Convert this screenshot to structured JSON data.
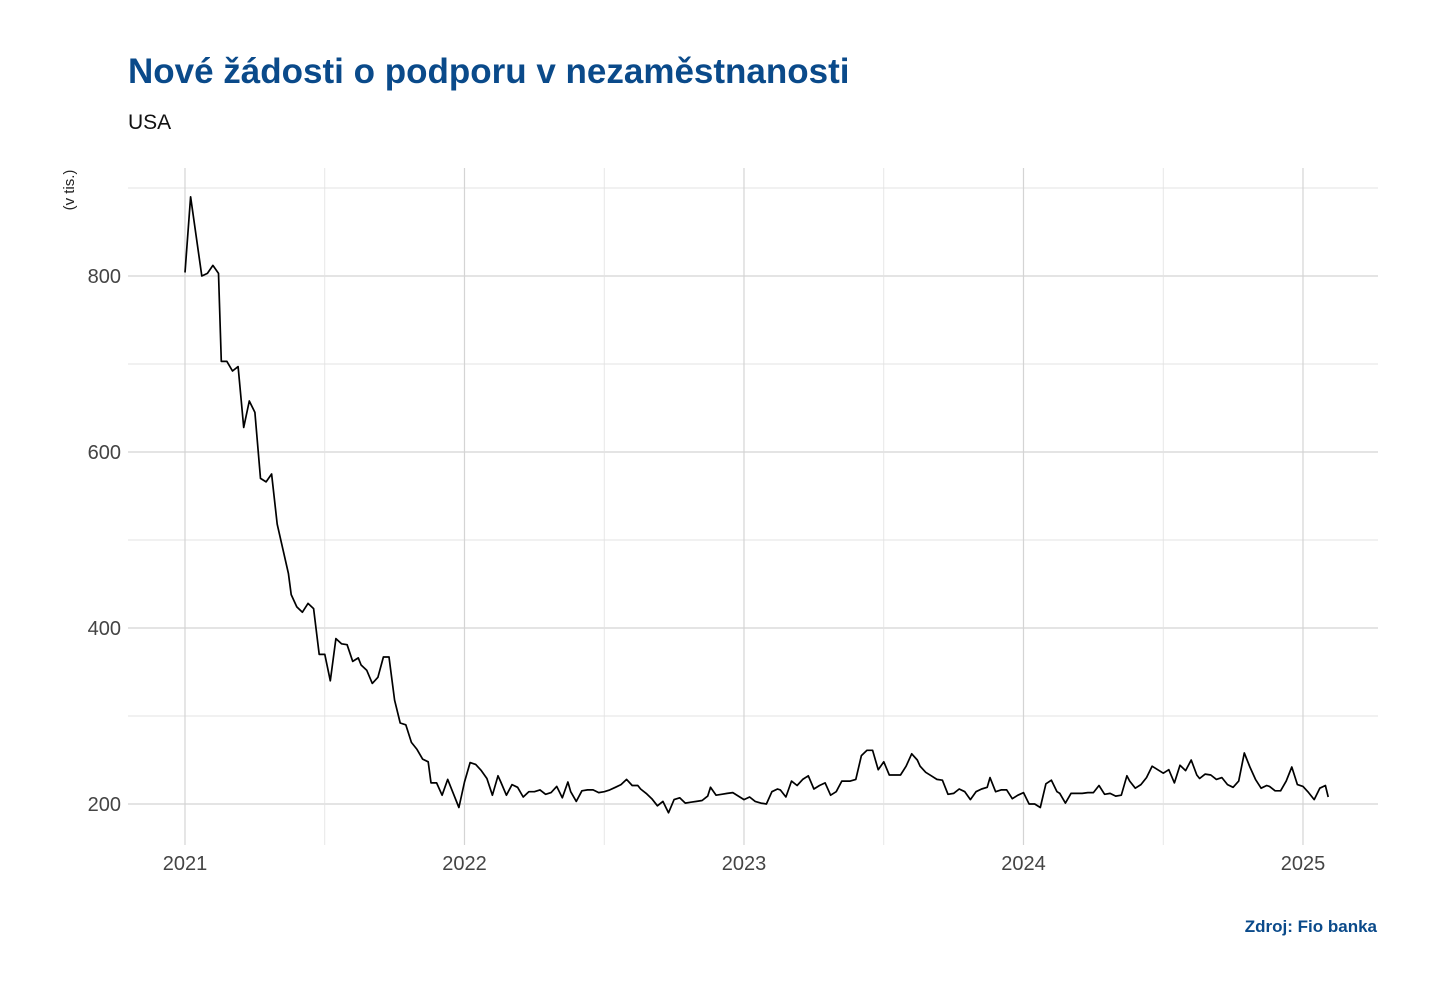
{
  "title": "Nové žádosti o podporu v nezaměstnanosti",
  "subtitle": "USA",
  "source": "Zdroj: Fio banka",
  "chart_data": {
    "type": "line",
    "title": "Nové žádosti o podporu v nezaměstnanosti",
    "subtitle": "USA",
    "ylabel": "(v tis.)",
    "xlabel": "",
    "x_ticks": [
      "2021",
      "2022",
      "2023",
      "2024",
      "2025"
    ],
    "y_ticks": [
      200,
      400,
      600,
      800
    ],
    "ylim": [
      155,
      910
    ],
    "xlim": [
      2020.8,
      2025.27
    ],
    "grid": true,
    "line_color": "#000000",
    "series": [
      {
        "values": [
          [
            2021.0,
            804
          ],
          [
            2021.02,
            890
          ],
          [
            2021.04,
            845
          ],
          [
            2021.06,
            800
          ],
          [
            2021.08,
            803
          ],
          [
            2021.1,
            812
          ],
          [
            2021.12,
            803
          ],
          [
            2021.13,
            703
          ],
          [
            2021.15,
            703
          ],
          [
            2021.17,
            692
          ],
          [
            2021.19,
            697
          ],
          [
            2021.21,
            628
          ],
          [
            2021.23,
            658
          ],
          [
            2021.25,
            645
          ],
          [
            2021.27,
            570
          ],
          [
            2021.29,
            566
          ],
          [
            2021.31,
            575
          ],
          [
            2021.33,
            518
          ],
          [
            2021.35,
            490
          ],
          [
            2021.37,
            462
          ],
          [
            2021.38,
            438
          ],
          [
            2021.4,
            424
          ],
          [
            2021.42,
            418
          ],
          [
            2021.44,
            428
          ],
          [
            2021.46,
            422
          ],
          [
            2021.48,
            370
          ],
          [
            2021.5,
            370
          ],
          [
            2021.52,
            340
          ],
          [
            2021.54,
            388
          ],
          [
            2021.56,
            382
          ],
          [
            2021.58,
            381
          ],
          [
            2021.6,
            362
          ],
          [
            2021.62,
            366
          ],
          [
            2021.63,
            358
          ],
          [
            2021.65,
            352
          ],
          [
            2021.67,
            337
          ],
          [
            2021.69,
            344
          ],
          [
            2021.71,
            367
          ],
          [
            2021.73,
            367
          ],
          [
            2021.75,
            318
          ],
          [
            2021.77,
            292
          ],
          [
            2021.79,
            290
          ],
          [
            2021.81,
            270
          ],
          [
            2021.83,
            262
          ],
          [
            2021.85,
            251
          ],
          [
            2021.87,
            248
          ],
          [
            2021.88,
            224
          ],
          [
            2021.9,
            224
          ],
          [
            2021.92,
            210
          ],
          [
            2021.94,
            228
          ],
          [
            2021.96,
            212
          ],
          [
            2021.98,
            196
          ],
          [
            2022.0,
            225
          ],
          [
            2022.02,
            247
          ],
          [
            2022.04,
            245
          ],
          [
            2022.06,
            238
          ],
          [
            2022.08,
            229
          ],
          [
            2022.1,
            210
          ],
          [
            2022.12,
            232
          ],
          [
            2022.13,
            225
          ],
          [
            2022.15,
            210
          ],
          [
            2022.17,
            222
          ],
          [
            2022.19,
            219
          ],
          [
            2022.21,
            208
          ],
          [
            2022.23,
            214
          ],
          [
            2022.25,
            214
          ],
          [
            2022.27,
            216
          ],
          [
            2022.29,
            211
          ],
          [
            2022.31,
            213
          ],
          [
            2022.33,
            220
          ],
          [
            2022.35,
            207
          ],
          [
            2022.37,
            225
          ],
          [
            2022.38,
            214
          ],
          [
            2022.4,
            203
          ],
          [
            2022.42,
            215
          ],
          [
            2022.44,
            216
          ],
          [
            2022.46,
            216
          ],
          [
            2022.48,
            213
          ],
          [
            2022.5,
            214
          ],
          [
            2022.52,
            216
          ],
          [
            2022.54,
            219
          ],
          [
            2022.56,
            222
          ],
          [
            2022.58,
            228
          ],
          [
            2022.6,
            221
          ],
          [
            2022.62,
            221
          ],
          [
            2022.63,
            217
          ],
          [
            2022.65,
            212
          ],
          [
            2022.67,
            206
          ],
          [
            2022.69,
            198
          ],
          [
            2022.71,
            203
          ],
          [
            2022.73,
            190
          ],
          [
            2022.75,
            205
          ],
          [
            2022.77,
            207
          ],
          [
            2022.79,
            201
          ],
          [
            2022.81,
            202
          ],
          [
            2022.83,
            203
          ],
          [
            2022.85,
            204
          ],
          [
            2022.87,
            209
          ],
          [
            2022.88,
            219
          ],
          [
            2022.9,
            210
          ],
          [
            2022.92,
            211
          ],
          [
            2022.94,
            212
          ],
          [
            2022.96,
            213
          ],
          [
            2022.98,
            209
          ],
          [
            2023.0,
            205
          ],
          [
            2023.02,
            208
          ],
          [
            2023.04,
            203
          ],
          [
            2023.06,
            201
          ],
          [
            2023.08,
            200
          ],
          [
            2023.1,
            214
          ],
          [
            2023.12,
            217
          ],
          [
            2023.13,
            216
          ],
          [
            2023.15,
            208
          ],
          [
            2023.17,
            226
          ],
          [
            2023.19,
            221
          ],
          [
            2023.21,
            228
          ],
          [
            2023.23,
            232
          ],
          [
            2023.25,
            217
          ],
          [
            2023.27,
            221
          ],
          [
            2023.29,
            224
          ],
          [
            2023.31,
            210
          ],
          [
            2023.33,
            214
          ],
          [
            2023.35,
            226
          ],
          [
            2023.37,
            226
          ],
          [
            2023.38,
            226
          ],
          [
            2023.4,
            228
          ],
          [
            2023.42,
            255
          ],
          [
            2023.44,
            261
          ],
          [
            2023.46,
            261
          ],
          [
            2023.48,
            239
          ],
          [
            2023.5,
            248
          ],
          [
            2023.52,
            233
          ],
          [
            2023.54,
            233
          ],
          [
            2023.56,
            233
          ],
          [
            2023.58,
            243
          ],
          [
            2023.6,
            257
          ],
          [
            2023.62,
            250
          ],
          [
            2023.63,
            243
          ],
          [
            2023.65,
            236
          ],
          [
            2023.67,
            232
          ],
          [
            2023.69,
            228
          ],
          [
            2023.71,
            227
          ],
          [
            2023.73,
            211
          ],
          [
            2023.75,
            212
          ],
          [
            2023.77,
            217
          ],
          [
            2023.79,
            214
          ],
          [
            2023.81,
            205
          ],
          [
            2023.83,
            214
          ],
          [
            2023.85,
            217
          ],
          [
            2023.87,
            219
          ],
          [
            2023.88,
            230
          ],
          [
            2023.9,
            214
          ],
          [
            2023.92,
            216
          ],
          [
            2023.94,
            216
          ],
          [
            2023.96,
            206
          ],
          [
            2023.98,
            210
          ],
          [
            2024.0,
            213
          ],
          [
            2024.02,
            200
          ],
          [
            2024.04,
            200
          ],
          [
            2024.06,
            196
          ],
          [
            2024.08,
            223
          ],
          [
            2024.1,
            227
          ],
          [
            2024.12,
            214
          ],
          [
            2024.13,
            212
          ],
          [
            2024.15,
            201
          ],
          [
            2024.17,
            212
          ],
          [
            2024.19,
            212
          ],
          [
            2024.21,
            212
          ],
          [
            2024.23,
            213
          ],
          [
            2024.25,
            213
          ],
          [
            2024.27,
            221
          ],
          [
            2024.29,
            211
          ],
          [
            2024.31,
            212
          ],
          [
            2024.33,
            209
          ],
          [
            2024.35,
            210
          ],
          [
            2024.37,
            232
          ],
          [
            2024.38,
            226
          ],
          [
            2024.4,
            218
          ],
          [
            2024.42,
            222
          ],
          [
            2024.44,
            230
          ],
          [
            2024.46,
            243
          ],
          [
            2024.48,
            239
          ],
          [
            2024.5,
            235
          ],
          [
            2024.52,
            239
          ],
          [
            2024.54,
            224
          ],
          [
            2024.56,
            244
          ],
          [
            2024.58,
            238
          ],
          [
            2024.6,
            250
          ],
          [
            2024.62,
            233
          ],
          [
            2024.63,
            229
          ],
          [
            2024.65,
            234
          ],
          [
            2024.67,
            233
          ],
          [
            2024.69,
            228
          ],
          [
            2024.71,
            230
          ],
          [
            2024.73,
            222
          ],
          [
            2024.75,
            219
          ],
          [
            2024.77,
            226
          ],
          [
            2024.79,
            258
          ],
          [
            2024.81,
            242
          ],
          [
            2024.83,
            228
          ],
          [
            2024.85,
            218
          ],
          [
            2024.87,
            221
          ],
          [
            2024.88,
            220
          ],
          [
            2024.9,
            215
          ],
          [
            2024.92,
            215
          ],
          [
            2024.94,
            226
          ],
          [
            2024.96,
            242
          ],
          [
            2024.98,
            222
          ],
          [
            2025.0,
            220
          ],
          [
            2025.02,
            213
          ],
          [
            2025.04,
            205
          ],
          [
            2025.06,
            218
          ],
          [
            2025.08,
            221
          ],
          [
            2025.09,
            208
          ]
        ]
      }
    ]
  }
}
